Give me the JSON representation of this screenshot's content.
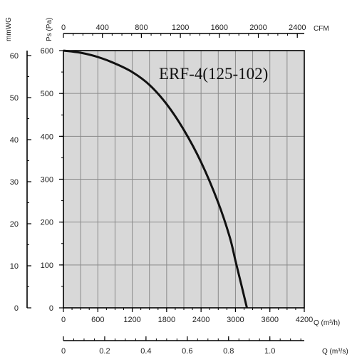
{
  "chart_data": {
    "type": "line",
    "title": "ERF-4(125-102)",
    "colors": {
      "plot_bg": "#d8d8d8",
      "grid": "#8a8a8a",
      "curve": "#111111",
      "axis": "#000000"
    },
    "grid": true,
    "x_axis_primary": {
      "label": "Q (m³/h)",
      "range": [
        0,
        4200
      ],
      "ticks": [
        0,
        600,
        1200,
        1800,
        2400,
        3000,
        3600,
        4200
      ],
      "tick_labels": [
        "0",
        "600",
        "1200",
        "1800",
        "2400",
        "3000",
        "3600",
        "4200"
      ]
    },
    "x_axis_top": {
      "label": "CFM",
      "range": [
        0,
        2471.5
      ],
      "ticks": [
        0,
        400,
        800,
        1200,
        1600,
        2000,
        2400
      ],
      "tick_labels": [
        "0",
        "400",
        "800",
        "1200",
        "1600",
        "2000",
        "2400"
      ]
    },
    "x_axis_bottom": {
      "label": "Q (m³/s)",
      "range": [
        0,
        1.1667
      ],
      "ticks": [
        0,
        0.2,
        0.4,
        0.6,
        0.8,
        1.0
      ],
      "tick_labels": [
        "0",
        "0.2",
        "0.4",
        "0.6",
        "0.8",
        "1.0"
      ]
    },
    "y_axis_primary": {
      "label": "Ps (Pa)",
      "range": [
        0,
        600
      ],
      "ticks": [
        0,
        100,
        200,
        300,
        400,
        500,
        600
      ],
      "tick_labels": [
        "0",
        "100",
        "200",
        "300",
        "400",
        "500",
        "600"
      ]
    },
    "y_axis_secondary": {
      "label": "mmWG",
      "range": [
        0,
        61.18
      ],
      "ticks": [
        0,
        10,
        20,
        30,
        40,
        50,
        60
      ],
      "tick_labels": [
        "0",
        "10",
        "20",
        "30",
        "40",
        "50",
        "60"
      ]
    },
    "series": [
      {
        "x": [
          0,
          300,
          600,
          900,
          1200,
          1500,
          1800,
          2100,
          2400,
          2700,
          2900,
          3000,
          3100,
          3200
        ],
        "y": [
          600,
          595,
          585,
          570,
          550,
          520,
          475,
          415,
          340,
          245,
          165,
          110,
          55,
          0
        ]
      }
    ]
  }
}
